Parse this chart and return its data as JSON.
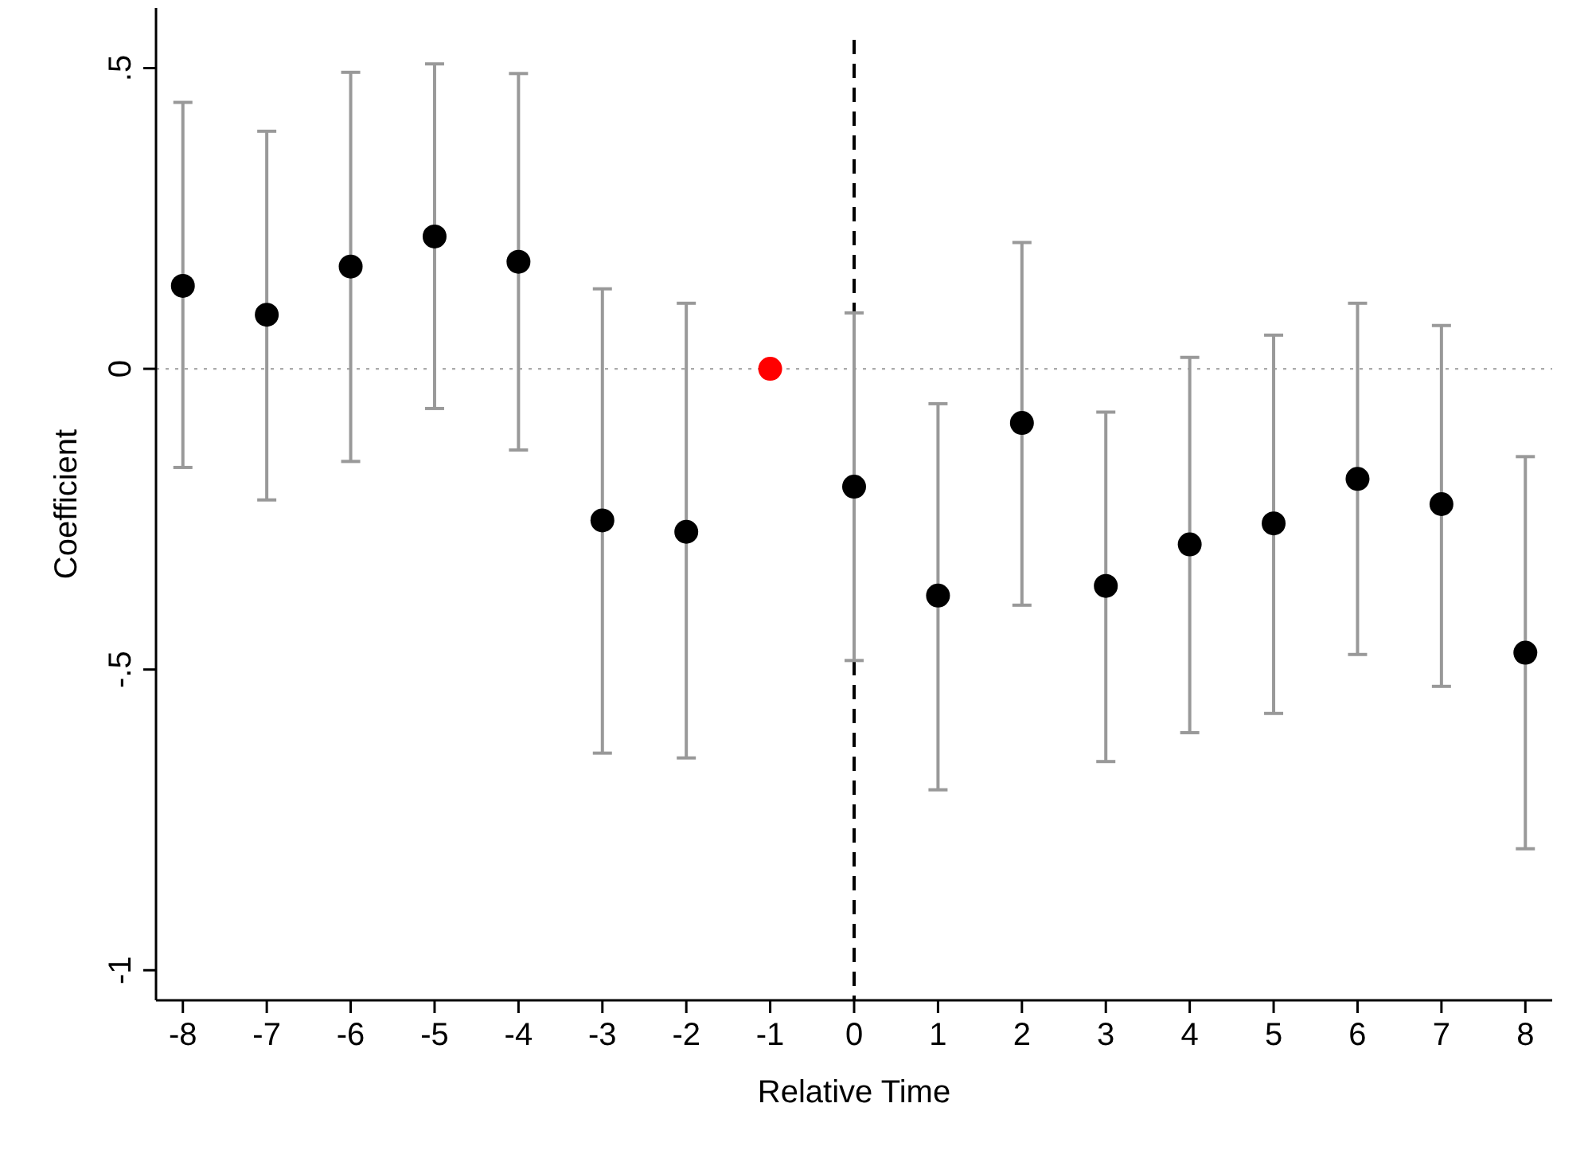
{
  "chart_data": {
    "type": "scatter",
    "xlabel": "Relative Time",
    "ylabel": "Coefficient",
    "x": [
      -8,
      -7,
      -6,
      -5,
      -4,
      -3,
      -2,
      -1,
      0,
      1,
      2,
      3,
      4,
      5,
      6,
      7,
      8
    ],
    "values": [
      0.138,
      0.09,
      0.17,
      0.22,
      0.178,
      -0.252,
      -0.271,
      0,
      -0.196,
      -0.377,
      -0.09,
      -0.361,
      -0.292,
      -0.257,
      -0.183,
      -0.225,
      -0.472
    ],
    "colors": [
      "#000000",
      "#000000",
      "#000000",
      "#000000",
      "#000000",
      "#000000",
      "#000000",
      "#ff0000",
      "#000000",
      "#000000",
      "#000000",
      "#000000",
      "#000000",
      "#000000",
      "#000000",
      "#000000",
      "#000000"
    ],
    "errors": [
      [
        -0.164,
        0.443
      ],
      [
        -0.218,
        0.395
      ],
      [
        -0.154,
        0.493
      ],
      [
        -0.066,
        0.507
      ],
      [
        -0.135,
        0.491
      ],
      [
        -0.639,
        0.133
      ],
      [
        -0.647,
        0.109
      ],
      null,
      [
        -0.485,
        0.093
      ],
      [
        -0.7,
        -0.058
      ],
      [
        -0.393,
        0.21
      ],
      [
        -0.653,
        -0.072
      ],
      [
        -0.605,
        0.019
      ],
      [
        -0.573,
        0.056
      ],
      [
        -0.475,
        0.109
      ],
      [
        -0.528,
        0.072
      ],
      [
        -0.798,
        -0.146
      ]
    ],
    "xlim": [
      -8.32,
      8.32
    ],
    "ylim": [
      -1.05,
      0.6
    ],
    "xticks": [
      -8,
      -7,
      -6,
      -5,
      -4,
      -3,
      -2,
      -1,
      0,
      1,
      2,
      3,
      4,
      5,
      6,
      7,
      8
    ],
    "yticks": [
      {
        "value": 0.5,
        "label": ".5"
      },
      0,
      {
        "value": -0.5,
        "label": "-.5"
      },
      -1
    ],
    "ref_lines": [
      {
        "axis": "y",
        "value": 0,
        "color": "#aaaaaa",
        "line_style": "dotted"
      },
      {
        "axis": "x",
        "value": 0,
        "color": "#000000",
        "line_style": "dashed"
      }
    ],
    "marker": "circle"
  }
}
